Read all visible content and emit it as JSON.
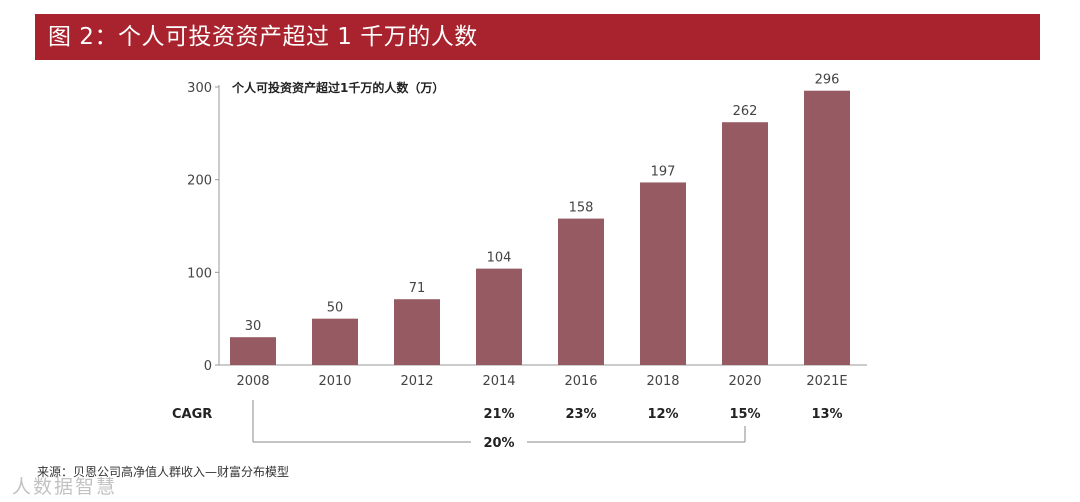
{
  "header": {
    "title": "图 2：个人可投资资产超过 1 千万的人数"
  },
  "chart_data": {
    "type": "bar",
    "title": "个人可投资资产超过1千万的人数（万）",
    "categories": [
      "2008",
      "2010",
      "2012",
      "2014",
      "2016",
      "2018",
      "2020",
      "2021E"
    ],
    "values": [
      30,
      50,
      71,
      104,
      158,
      197,
      262,
      296
    ],
    "data_labels": [
      "30",
      "50",
      "71",
      "104",
      "158",
      "197",
      "262",
      "296"
    ],
    "ylim": [
      0,
      300
    ],
    "yticks": [
      0,
      100,
      200,
      300
    ],
    "grid": false,
    "bar_color": "#965a62",
    "cagr": {
      "label": "CAGR",
      "values": [
        "",
        "",
        "",
        "21%",
        "23%",
        "12%",
        "15%",
        "13%"
      ],
      "span_label": "20%",
      "span_from": "2008",
      "span_to": "2020"
    }
  },
  "footer": {
    "source": "来源：贝恩公司高净值人群收入—财富分布模型",
    "watermark": "人数据智慧"
  }
}
